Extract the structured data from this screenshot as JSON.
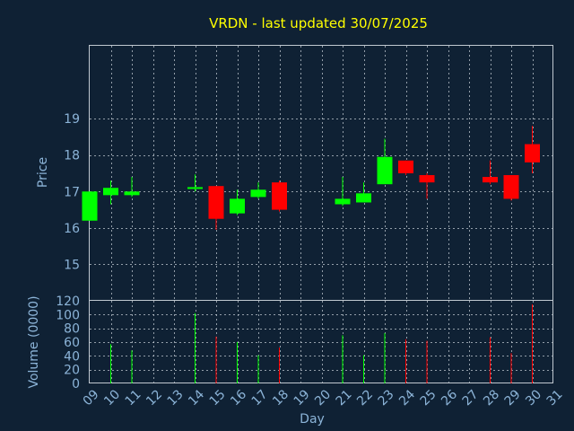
{
  "chart_data": {
    "type": "candlestick",
    "title": "VRDN - last updated 30/07/2025",
    "xlabel": "Day",
    "price_label": "Price",
    "volume_label": "Volume (0000)",
    "x_ticks": [
      "09",
      "10",
      "11",
      "12",
      "13",
      "14",
      "15",
      "16",
      "17",
      "18",
      "19",
      "20",
      "21",
      "22",
      "23",
      "24",
      "25",
      "26",
      "27",
      "28",
      "29",
      "30",
      "31"
    ],
    "price_ticks": [
      "15",
      "16",
      "17",
      "18",
      "19"
    ],
    "volume_ticks": [
      "0",
      "20",
      "40",
      "60",
      "80",
      "100",
      "120"
    ],
    "price_ylim": [
      14.0,
      21.0
    ],
    "volume_ylim": [
      0,
      120
    ],
    "up_color": "#00ff00",
    "down_color": "#ff0000",
    "grid": true,
    "candles": [
      {
        "day": 9,
        "open": 16.2,
        "high": 17.0,
        "low": 16.2,
        "close": 17.0,
        "volume": 0
      },
      {
        "day": 10,
        "open": 16.9,
        "high": 17.3,
        "low": 16.65,
        "close": 17.1,
        "volume": 57
      },
      {
        "day": 11,
        "open": 16.9,
        "high": 17.4,
        "low": 16.85,
        "close": 17.0,
        "volume": 48
      },
      {
        "day": 14,
        "open": 17.07,
        "high": 17.47,
        "low": 17.0,
        "close": 17.12,
        "volume": 102
      },
      {
        "day": 15,
        "open": 17.15,
        "high": 17.15,
        "low": 15.95,
        "close": 16.25,
        "volume": 68
      },
      {
        "day": 16,
        "open": 16.4,
        "high": 17.05,
        "low": 16.35,
        "close": 16.8,
        "volume": 60
      },
      {
        "day": 17,
        "open": 16.85,
        "high": 17.25,
        "low": 16.8,
        "close": 17.05,
        "volume": 41
      },
      {
        "day": 18,
        "open": 17.25,
        "high": 17.3,
        "low": 16.45,
        "close": 16.5,
        "volume": 52
      },
      {
        "day": 21,
        "open": 16.65,
        "high": 17.4,
        "low": 16.6,
        "close": 16.8,
        "volume": 70
      },
      {
        "day": 22,
        "open": 16.7,
        "high": 17.25,
        "low": 16.7,
        "close": 16.95,
        "volume": 41
      },
      {
        "day": 23,
        "open": 17.2,
        "high": 18.45,
        "low": 17.2,
        "close": 17.95,
        "volume": 73
      },
      {
        "day": 24,
        "open": 17.85,
        "high": 17.85,
        "low": 17.45,
        "close": 17.5,
        "volume": 64
      },
      {
        "day": 25,
        "open": 17.45,
        "high": 17.5,
        "low": 16.8,
        "close": 17.25,
        "volume": 62
      },
      {
        "day": 28,
        "open": 17.4,
        "high": 17.85,
        "low": 17.2,
        "close": 17.25,
        "volume": 67
      },
      {
        "day": 29,
        "open": 17.45,
        "high": 17.45,
        "low": 16.75,
        "close": 16.8,
        "volume": 44
      },
      {
        "day": 30,
        "open": 18.3,
        "high": 18.8,
        "low": 17.5,
        "close": 17.8,
        "volume": 115
      }
    ]
  }
}
